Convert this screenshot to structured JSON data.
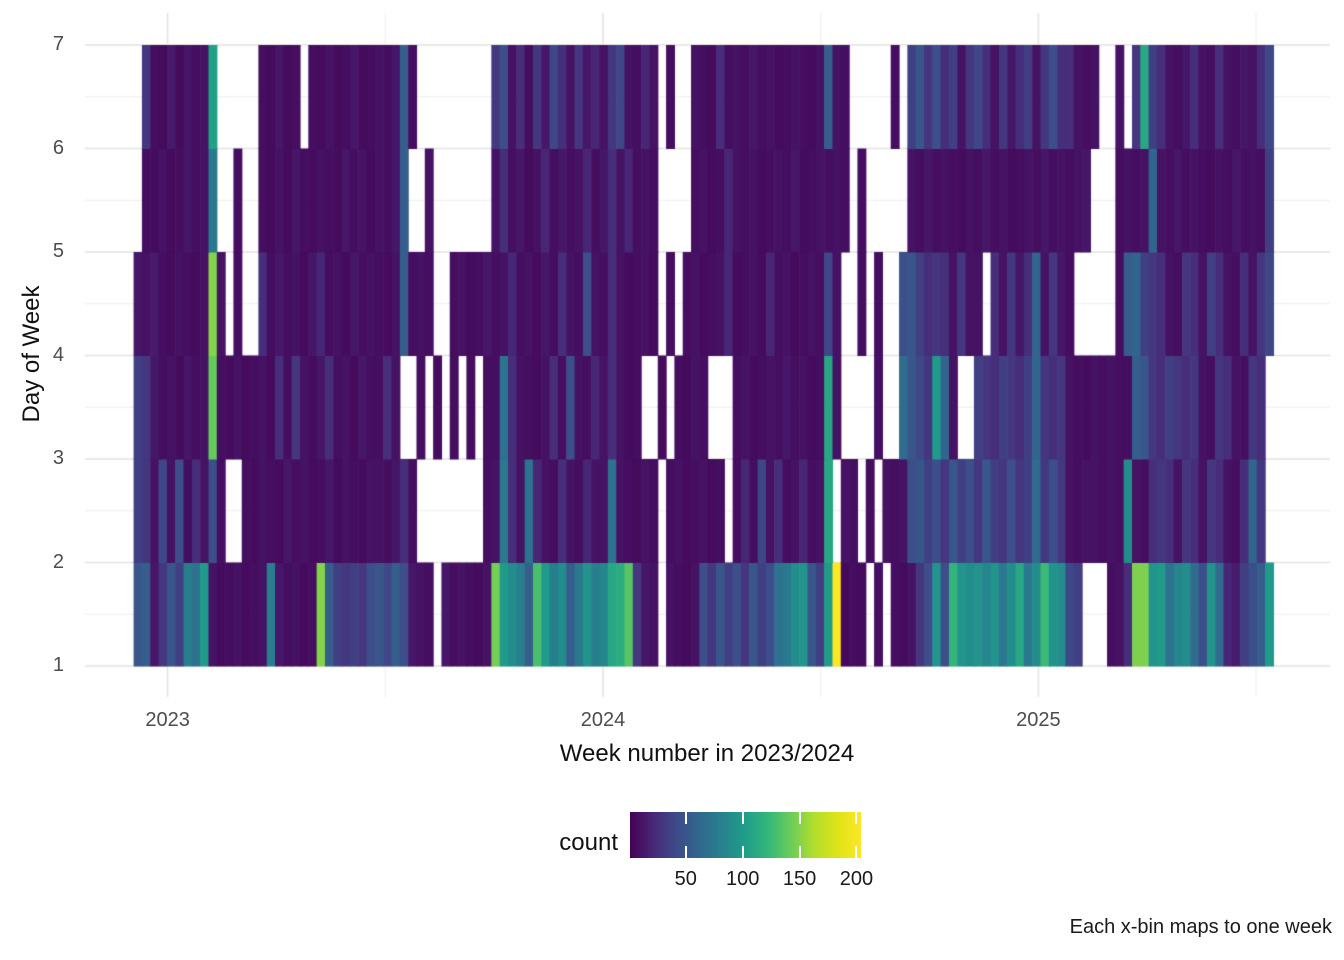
{
  "axes": {
    "x": {
      "title": "Week number in 2023/2024",
      "tick_labels": [
        "2023",
        "2024",
        "2025"
      ]
    },
    "y": {
      "title": "Day of Week",
      "tick_labels": [
        "1",
        "2",
        "3",
        "4",
        "5",
        "6",
        "7"
      ]
    }
  },
  "legend": {
    "title": "count",
    "tick_values": [
      50,
      100,
      150,
      200
    ],
    "domain": [
      1,
      204
    ]
  },
  "caption": "Each x-bin maps to one week",
  "chart_data": {
    "type": "heatmap",
    "title": "",
    "xlabel": "Week number in 2023/2024",
    "ylabel": "Day of Week",
    "x_tick_labels": [
      "2023",
      "2024",
      "2025"
    ],
    "x_description": "137 weekly bins, starting ~4 weeks before the 2023 tick and ending ~28 weeks after the 2025 tick",
    "y_bands": [
      "1-2",
      "2-3",
      "3-4",
      "4-5",
      "5-6",
      "6-7"
    ],
    "grid": true,
    "legend_position": "bottom",
    "colormap": {
      "name": "viridis",
      "stops": [
        "#440154",
        "#482878",
        "#3e4a89",
        "#31688e",
        "#26828e",
        "#1f9e89",
        "#35b779",
        "#6dcd59",
        "#b4de2c",
        "#dfe318",
        "#fde725"
      ]
    },
    "rows": [
      {
        "y_band": "1-2",
        "values": [
          50,
          55,
          12,
          30,
          50,
          35,
          80,
          70,
          100,
          10,
          6,
          8,
          10,
          6,
          8,
          10,
          80,
          12,
          8,
          10,
          6,
          8,
          150,
          55,
          35,
          30,
          35,
          30,
          45,
          50,
          40,
          55,
          45,
          12,
          10,
          8,
          null,
          12,
          8,
          10,
          8,
          6,
          10,
          145,
          100,
          90,
          80,
          55,
          130,
          100,
          80,
          90,
          55,
          75,
          95,
          80,
          85,
          110,
          115,
          135,
          30,
          12,
          10,
          null,
          10,
          8,
          6,
          10,
          45,
          30,
          50,
          35,
          45,
          30,
          50,
          35,
          45,
          70,
          75,
          90,
          95,
          50,
          35,
          100,
          204,
          5,
          8,
          6,
          null,
          8,
          null,
          8,
          6,
          10,
          30,
          45,
          95,
          45,
          120,
          95,
          90,
          95,
          85,
          95,
          75,
          90,
          110,
          75,
          90,
          125,
          95,
          90,
          40,
          35,
          null,
          null,
          null,
          8,
          10,
          25,
          148,
          148,
          95,
          100,
          70,
          85,
          90,
          65,
          45,
          95,
          65,
          20,
          15,
          35,
          45,
          55,
          100
        ]
      },
      {
        "y_band": "2-3",
        "values": [
          35,
          30,
          10,
          40,
          10,
          45,
          8,
          25,
          10,
          45,
          8,
          null,
          null,
          8,
          6,
          10,
          8,
          6,
          12,
          8,
          10,
          6,
          8,
          12,
          6,
          10,
          8,
          6,
          10,
          10,
          8,
          12,
          25,
          8,
          null,
          null,
          null,
          null,
          null,
          null,
          null,
          null,
          8,
          10,
          75,
          25,
          10,
          70,
          20,
          10,
          8,
          25,
          10,
          8,
          20,
          10,
          10,
          70,
          10,
          8,
          6,
          10,
          8,
          null,
          8,
          10,
          6,
          8,
          10,
          6,
          8,
          null,
          8,
          20,
          8,
          40,
          10,
          25,
          8,
          10,
          20,
          8,
          10,
          110,
          null,
          10,
          8,
          null,
          8,
          null,
          10,
          8,
          10,
          45,
          50,
          35,
          45,
          30,
          50,
          35,
          45,
          30,
          50,
          35,
          30,
          45,
          30,
          35,
          65,
          30,
          45,
          30,
          10,
          8,
          10,
          10,
          8,
          10,
          8,
          90,
          10,
          8,
          25,
          30,
          25,
          10,
          30,
          25,
          10,
          30,
          25,
          10,
          8,
          25,
          60,
          30,
          null
        ]
      },
      {
        "y_band": "3-4",
        "values": [
          35,
          30,
          12,
          8,
          10,
          6,
          12,
          8,
          10,
          140,
          8,
          6,
          10,
          6,
          8,
          10,
          6,
          25,
          8,
          30,
          10,
          6,
          12,
          25,
          8,
          10,
          6,
          12,
          8,
          8,
          25,
          10,
          null,
          null,
          8,
          null,
          6,
          null,
          8,
          null,
          6,
          null,
          8,
          8,
          70,
          25,
          10,
          8,
          6,
          10,
          25,
          8,
          45,
          10,
          8,
          20,
          10,
          25,
          10,
          6,
          8,
          null,
          null,
          6,
          null,
          8,
          6,
          10,
          8,
          null,
          null,
          null,
          8,
          10,
          6,
          8,
          10,
          8,
          12,
          8,
          10,
          6,
          8,
          110,
          10,
          null,
          null,
          null,
          null,
          8,
          null,
          null,
          65,
          50,
          40,
          30,
          100,
          60,
          10,
          null,
          null,
          35,
          30,
          25,
          35,
          30,
          25,
          35,
          60,
          30,
          25,
          30,
          10,
          8,
          6,
          10,
          8,
          10,
          8,
          8,
          55,
          50,
          30,
          25,
          35,
          30,
          25,
          30,
          10,
          8,
          30,
          25,
          10,
          8,
          30,
          25,
          null
        ]
      },
      {
        "y_band": "4-5",
        "values": [
          12,
          10,
          14,
          8,
          6,
          10,
          8,
          6,
          10,
          150,
          10,
          null,
          8,
          null,
          null,
          25,
          8,
          12,
          8,
          10,
          6,
          12,
          20,
          8,
          10,
          6,
          12,
          8,
          10,
          8,
          6,
          10,
          55,
          8,
          10,
          8,
          null,
          null,
          8,
          10,
          6,
          8,
          12,
          8,
          10,
          20,
          8,
          10,
          6,
          12,
          8,
          25,
          10,
          8,
          45,
          10,
          8,
          25,
          10,
          6,
          8,
          10,
          6,
          null,
          8,
          null,
          8,
          10,
          6,
          8,
          10,
          20,
          6,
          8,
          10,
          6,
          20,
          8,
          10,
          6,
          8,
          10,
          8,
          40,
          10,
          null,
          null,
          8,
          null,
          8,
          null,
          null,
          45,
          50,
          35,
          25,
          30,
          25,
          10,
          30,
          10,
          10,
          null,
          25,
          10,
          30,
          12,
          25,
          60,
          10,
          30,
          12,
          8,
          null,
          null,
          null,
          null,
          null,
          8,
          55,
          60,
          35,
          30,
          25,
          10,
          8,
          30,
          25,
          10,
          35,
          25,
          10,
          8,
          25,
          10,
          30,
          40
        ]
      },
      {
        "y_band": "5-6",
        "values": [
          null,
          8,
          6,
          10,
          6,
          8,
          12,
          8,
          10,
          75,
          null,
          null,
          8,
          null,
          null,
          8,
          6,
          10,
          6,
          12,
          8,
          6,
          10,
          8,
          6,
          12,
          8,
          10,
          6,
          10,
          8,
          12,
          55,
          null,
          null,
          10,
          null,
          null,
          null,
          null,
          null,
          null,
          null,
          10,
          25,
          8,
          12,
          6,
          10,
          20,
          8,
          12,
          8,
          10,
          20,
          8,
          12,
          25,
          10,
          20,
          8,
          10,
          8,
          null,
          null,
          null,
          null,
          8,
          10,
          6,
          8,
          20,
          10,
          8,
          10,
          6,
          8,
          10,
          8,
          12,
          6,
          8,
          10,
          8,
          10,
          8,
          null,
          8,
          null,
          null,
          null,
          null,
          null,
          10,
          8,
          12,
          8,
          10,
          8,
          6,
          10,
          8,
          12,
          8,
          10,
          6,
          8,
          10,
          8,
          12,
          8,
          10,
          8,
          10,
          12,
          null,
          null,
          null,
          8,
          10,
          8,
          10,
          60,
          10,
          8,
          12,
          8,
          10,
          8,
          6,
          10,
          8,
          12,
          8,
          10,
          8,
          35
        ]
      },
      {
        "y_band": "6-7",
        "values": [
          null,
          30,
          8,
          6,
          14,
          6,
          12,
          8,
          10,
          105,
          null,
          null,
          null,
          null,
          null,
          8,
          6,
          12,
          6,
          8,
          null,
          8,
          6,
          10,
          6,
          8,
          12,
          6,
          8,
          10,
          8,
          12,
          55,
          8,
          null,
          null,
          null,
          null,
          null,
          null,
          null,
          null,
          null,
          30,
          45,
          10,
          25,
          8,
          30,
          12,
          40,
          25,
          10,
          30,
          12,
          20,
          10,
          30,
          40,
          10,
          8,
          20,
          10,
          null,
          8,
          null,
          null,
          10,
          8,
          6,
          25,
          8,
          10,
          8,
          12,
          8,
          10,
          6,
          8,
          10,
          8,
          6,
          10,
          55,
          10,
          8,
          null,
          null,
          null,
          null,
          null,
          8,
          null,
          35,
          50,
          30,
          45,
          25,
          35,
          10,
          30,
          40,
          25,
          10,
          30,
          12,
          25,
          35,
          10,
          30,
          45,
          25,
          25,
          10,
          8,
          10,
          null,
          null,
          10,
          null,
          30,
          110,
          35,
          25,
          10,
          8,
          12,
          25,
          10,
          8,
          25,
          10,
          8,
          12,
          10,
          25,
          40
        ]
      }
    ]
  }
}
